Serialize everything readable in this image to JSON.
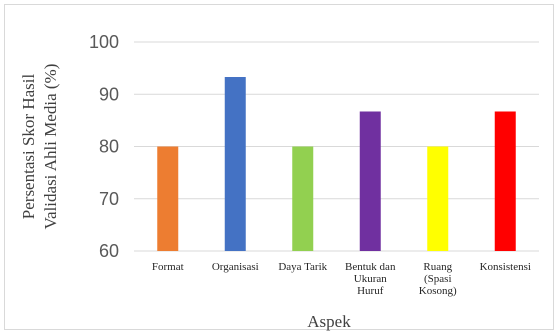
{
  "chart_data": {
    "type": "bar",
    "title": "",
    "xlabel": "Aspek",
    "ylabel": [
      "Persentasi Skor Hasil",
      "Validasi Ahli Media (%)"
    ],
    "ylim": [
      60,
      100
    ],
    "yticks": [
      "60",
      "70",
      "80",
      "90",
      "100"
    ],
    "grid": true,
    "categories": [
      [
        "Format"
      ],
      [
        "Organisasi"
      ],
      [
        "Daya Tarik"
      ],
      [
        "Bentuk dan",
        "Ukuran",
        "Huruf"
      ],
      [
        "Ruang",
        "(Spasi",
        "Kosong)"
      ],
      [
        "Konsistensi"
      ]
    ],
    "values": [
      80,
      93.3,
      80,
      86.7,
      80,
      86.7
    ],
    "colors": [
      "#ED7D31",
      "#4472C4",
      "#92D050",
      "#7030A0",
      "#FFFF00",
      "#FF0000"
    ]
  }
}
